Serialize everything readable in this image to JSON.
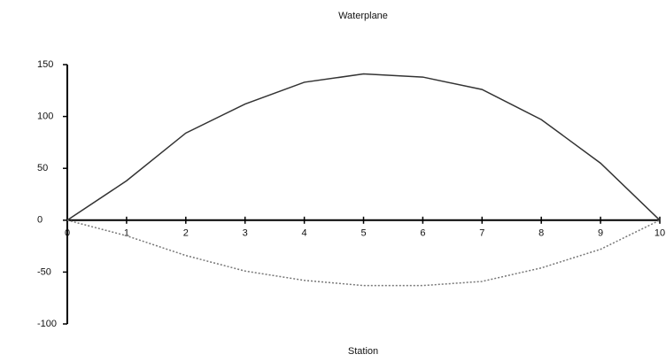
{
  "chart_data": {
    "type": "line",
    "title": "Waterplane",
    "x_label": "Station",
    "x": [
      0,
      1,
      2,
      3,
      4,
      5,
      6,
      7,
      8,
      9,
      10
    ],
    "series": [
      {
        "color": "#333333",
        "style": "solid",
        "values": [
          0,
          38,
          84,
          112,
          133,
          141,
          138,
          126,
          97,
          55,
          0
        ]
      },
      {
        "color": "#777777",
        "style": "dotted",
        "values": [
          0,
          -15,
          -34,
          -49,
          -58,
          -63,
          -63,
          -59,
          -46,
          -28,
          0
        ]
      }
    ],
    "xlim": [
      0,
      10
    ],
    "xticks": [
      0,
      1,
      2,
      3,
      4,
      5,
      6,
      7,
      8,
      9,
      10
    ],
    "ylim": [
      -100,
      150
    ],
    "yticks": [
      150,
      100,
      50,
      0,
      -50,
      -100
    ],
    "grid": false
  }
}
